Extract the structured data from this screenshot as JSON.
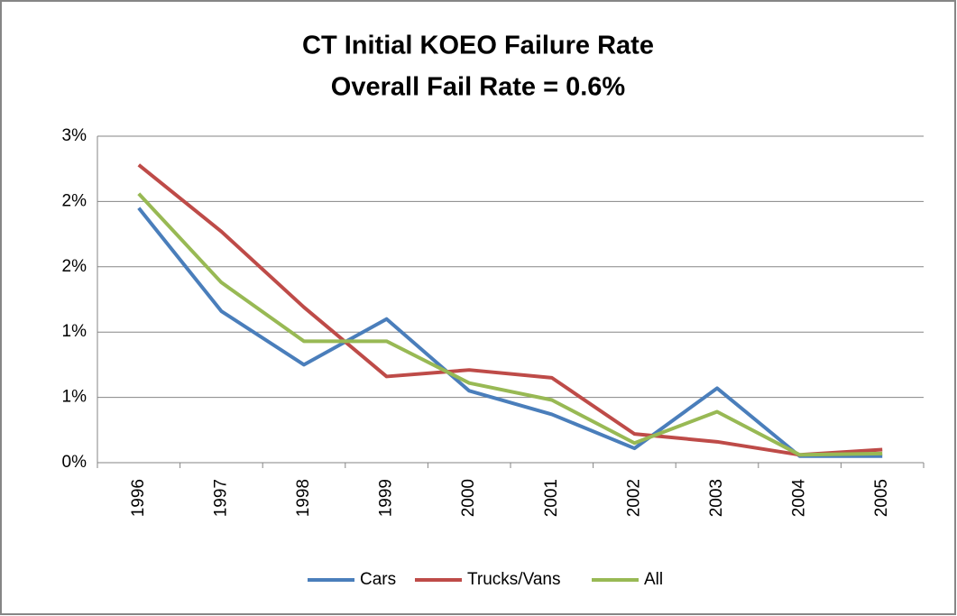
{
  "chart_data": {
    "type": "line",
    "title": "CT Initial KOEO Failure Rate",
    "subtitle": "Overall Fail Rate = 0.6%",
    "categories": [
      "1996",
      "1997",
      "1998",
      "1999",
      "2000",
      "2001",
      "2002",
      "2003",
      "2004",
      "2005"
    ],
    "series": [
      {
        "name": "Cars",
        "color": "#4a7ebb",
        "values": [
          1.95,
          1.16,
          0.75,
          1.1,
          0.55,
          0.37,
          0.11,
          0.57,
          0.05,
          0.05
        ]
      },
      {
        "name": "Trucks/Vans",
        "color": "#be4b48",
        "values": [
          2.28,
          1.77,
          1.19,
          0.66,
          0.71,
          0.65,
          0.22,
          0.16,
          0.06,
          0.1
        ]
      },
      {
        "name": "All",
        "color": "#98b954",
        "values": [
          2.06,
          1.38,
          0.93,
          0.93,
          0.61,
          0.48,
          0.15,
          0.39,
          0.06,
          0.07
        ]
      }
    ],
    "ylim": [
      0,
      2.5
    ],
    "yticks": [
      {
        "value": 0,
        "label": "0%"
      },
      {
        "value": 0.5,
        "label": "1%"
      },
      {
        "value": 1,
        "label": "1%"
      },
      {
        "value": 1.5,
        "label": "2%"
      },
      {
        "value": 2,
        "label": "2%"
      },
      {
        "value": 2.5,
        "label": "3%"
      }
    ],
    "grid": true,
    "legend": "bottom"
  }
}
